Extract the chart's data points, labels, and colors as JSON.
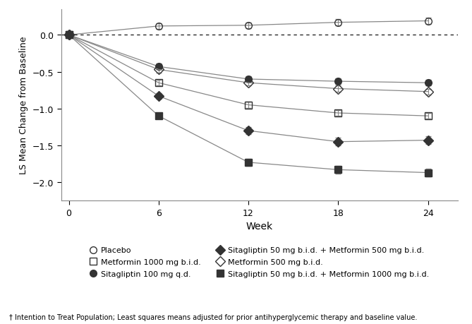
{
  "weeks": [
    0,
    6,
    12,
    18,
    24
  ],
  "series": [
    {
      "label": "Placebo",
      "values": [
        0.0,
        0.12,
        0.13,
        0.17,
        0.19
      ],
      "marker": "o",
      "fillstyle": "none",
      "yerr": [
        0.0,
        0.04,
        0.04,
        0.04,
        0.04
      ]
    },
    {
      "label": "Sitagliptin 100 mg q.d.",
      "values": [
        0.0,
        -0.43,
        -0.6,
        -0.63,
        -0.65
      ],
      "marker": "o",
      "fillstyle": "full",
      "yerr": [
        0.0,
        0.04,
        0.04,
        0.04,
        0.04
      ]
    },
    {
      "label": "Metformin 500 mg b.i.d.",
      "values": [
        0.0,
        -0.47,
        -0.65,
        -0.73,
        -0.77
      ],
      "marker": "D",
      "fillstyle": "none",
      "yerr": [
        0.0,
        0.04,
        0.04,
        0.04,
        0.04
      ]
    },
    {
      "label": "Metformin 1000 mg b.i.d.",
      "values": [
        0.0,
        -0.65,
        -0.95,
        -1.06,
        -1.1
      ],
      "marker": "s",
      "fillstyle": "none",
      "yerr": [
        0.0,
        0.04,
        0.04,
        0.04,
        0.04
      ]
    },
    {
      "label": "Sitagliptin 50 mg b.i.d. + Metformin 500 mg b.i.d.",
      "values": [
        0.0,
        -0.83,
        -1.3,
        -1.45,
        -1.43
      ],
      "marker": "D",
      "fillstyle": "full",
      "yerr": [
        0.0,
        0.04,
        0.05,
        0.05,
        0.05
      ]
    },
    {
      "label": "Sitagliptin 50 mg b.i.d. + Metformin 1000 mg b.i.d.",
      "values": [
        0.0,
        -1.1,
        -1.73,
        -1.83,
        -1.87
      ],
      "marker": "s",
      "fillstyle": "full",
      "yerr": [
        0.0,
        0.04,
        0.05,
        0.05,
        0.05
      ]
    }
  ],
  "line_color": "#888888",
  "marker_color": "#333333",
  "xlabel": "Week",
  "ylabel": "LS Mean Change from Baseline",
  "ylim": [
    -2.25,
    0.35
  ],
  "xlim": [
    -0.5,
    26
  ],
  "xticks": [
    0,
    6,
    12,
    18,
    24
  ],
  "yticks": [
    -2.0,
    -1.5,
    -1.0,
    -0.5,
    0.0
  ],
  "legend_entries": [
    {
      "label": "Placebo",
      "marker": "o",
      "fillstyle": "none"
    },
    {
      "label": "Metformin 1000 mg b.i.d.",
      "marker": "s",
      "fillstyle": "none"
    },
    {
      "label": "Sitagliptin 100 mg q.d.",
      "marker": "o",
      "fillstyle": "full"
    },
    {
      "label": "Sitagliptin 50 mg b.i.d. + Metformin 500 mg b.i.d.",
      "marker": "D",
      "fillstyle": "full"
    },
    {
      "label": "Metformin 500 mg b.i.d.",
      "marker": "D",
      "fillstyle": "none"
    },
    {
      "label": "Sitagliptin 50 mg b.i.d. + Metformin 1000 mg b.i.d.",
      "marker": "s",
      "fillstyle": "full"
    }
  ],
  "footnote": "† Intention to Treat Population; Least squares means adjusted for prior antihyperglycemic therapy and baseline value."
}
